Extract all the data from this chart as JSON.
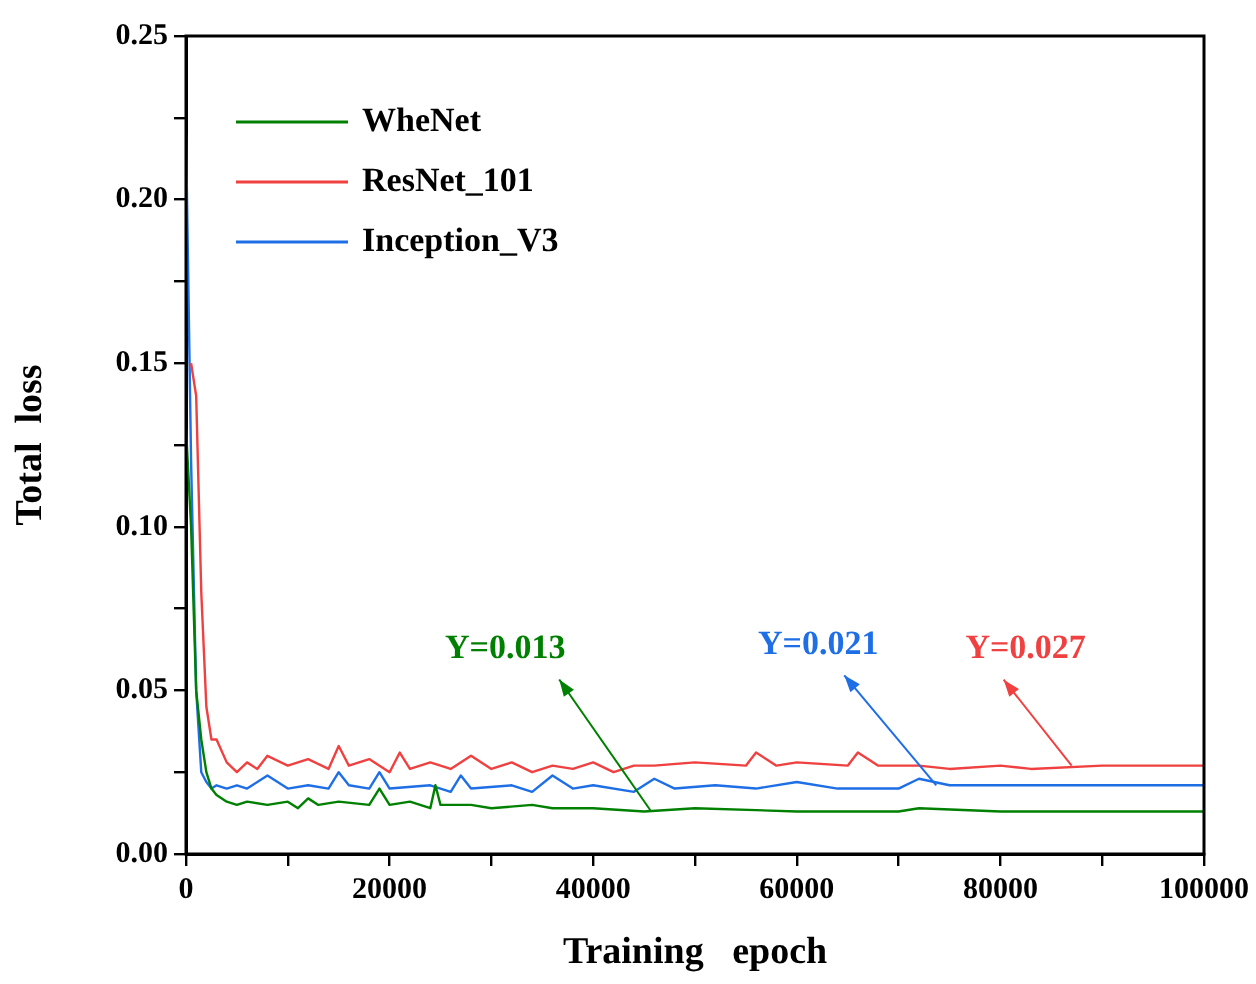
{
  "chart_data": {
    "type": "line",
    "xlabel": "Training   epoch",
    "ylabel": "Total  loss",
    "xlim": [
      0,
      100000
    ],
    "ylim": [
      0,
      0.25
    ],
    "xticks": [
      0,
      {
        "value": 10000,
        "label": null
      },
      20000,
      {
        "value": 30000,
        "label": null
      },
      40000,
      {
        "value": 50000,
        "label": null
      },
      60000,
      {
        "value": 70000,
        "label": null
      },
      80000,
      {
        "value": 90000,
        "label": null
      },
      100000
    ],
    "yticks": [
      {
        "value": 0,
        "label": "0.00"
      },
      {
        "value": 0.025,
        "label": null
      },
      {
        "value": 0.05,
        "label": "0.05"
      },
      {
        "value": 0.075,
        "label": null
      },
      {
        "value": 0.1,
        "label": "0.10"
      },
      {
        "value": 0.125,
        "label": null
      },
      {
        "value": 0.15,
        "label": "0.15"
      },
      {
        "value": 0.175,
        "label": null
      },
      {
        "value": 0.2,
        "label": "0.20"
      },
      {
        "value": 0.225,
        "label": null
      },
      {
        "value": 0.25,
        "label": "0.25"
      }
    ],
    "grid": false,
    "legend": "top left",
    "marker": "none",
    "line_style": "solid",
    "series": [
      {
        "name": "WheNet",
        "color": "#008000",
        "x": [
          0,
          500,
          1000,
          1500,
          2000,
          2500,
          3000,
          4000,
          5000,
          6000,
          8000,
          10000,
          11000,
          12000,
          13000,
          15000,
          18000,
          19000,
          20000,
          22000,
          24000,
          24500,
          25000,
          28000,
          30000,
          34000,
          36000,
          40000,
          45000,
          50000,
          60000,
          70000,
          72000,
          80000,
          90000,
          100000
        ],
        "values": [
          0.13,
          0.1,
          0.05,
          0.035,
          0.025,
          0.02,
          0.018,
          0.016,
          0.015,
          0.016,
          0.015,
          0.016,
          0.014,
          0.017,
          0.015,
          0.016,
          0.015,
          0.02,
          0.015,
          0.016,
          0.014,
          0.021,
          0.015,
          0.015,
          0.014,
          0.015,
          0.014,
          0.014,
          0.013,
          0.014,
          0.013,
          0.013,
          0.014,
          0.013,
          0.013,
          0.013
        ]
      },
      {
        "name": "ResNet_101",
        "color": "#f04040",
        "x": [
          500,
          1000,
          1500,
          2000,
          2500,
          3000,
          4000,
          5000,
          6000,
          7000,
          8000,
          10000,
          12000,
          14000,
          15000,
          16000,
          18000,
          20000,
          21000,
          22000,
          24000,
          26000,
          28000,
          30000,
          32000,
          34000,
          36000,
          38000,
          40000,
          42000,
          44000,
          46000,
          50000,
          55000,
          56000,
          58000,
          60000,
          65000,
          66000,
          68000,
          72000,
          75000,
          80000,
          83000,
          90000,
          100000
        ],
        "values": [
          0.15,
          0.14,
          0.08,
          0.045,
          0.035,
          0.035,
          0.028,
          0.025,
          0.028,
          0.026,
          0.03,
          0.027,
          0.029,
          0.026,
          0.033,
          0.027,
          0.029,
          0.025,
          0.031,
          0.026,
          0.028,
          0.026,
          0.03,
          0.026,
          0.028,
          0.025,
          0.027,
          0.026,
          0.028,
          0.025,
          0.027,
          0.027,
          0.028,
          0.027,
          0.031,
          0.027,
          0.028,
          0.027,
          0.031,
          0.027,
          0.027,
          0.026,
          0.027,
          0.026,
          0.027,
          0.027
        ]
      },
      {
        "name": "Inception_V3",
        "color": "#1e6ee6",
        "x": [
          0,
          500,
          1000,
          1500,
          2000,
          2500,
          3000,
          4000,
          5000,
          6000,
          8000,
          10000,
          12000,
          14000,
          15000,
          16000,
          18000,
          19000,
          20000,
          24000,
          26000,
          27000,
          28000,
          32000,
          34000,
          36000,
          38000,
          40000,
          44000,
          46000,
          48000,
          52000,
          56000,
          60000,
          64000,
          70000,
          72000,
          75000,
          80000,
          90000,
          100000
        ],
        "values": [
          0.22,
          0.12,
          0.05,
          0.025,
          0.022,
          0.02,
          0.021,
          0.02,
          0.021,
          0.02,
          0.024,
          0.02,
          0.021,
          0.02,
          0.025,
          0.021,
          0.02,
          0.025,
          0.02,
          0.021,
          0.019,
          0.024,
          0.02,
          0.021,
          0.019,
          0.024,
          0.02,
          0.021,
          0.019,
          0.023,
          0.02,
          0.021,
          0.02,
          0.022,
          0.02,
          0.02,
          0.023,
          0.021,
          0.021,
          0.021,
          0.021
        ]
      }
    ],
    "annotations": [
      {
        "text": "Y=0.013",
        "x": 45700,
        "y": 0.013
      },
      {
        "text": "Y=0.021",
        "x": 73700,
        "y": 0.021
      },
      {
        "text": "Y=0.027",
        "x": 87000,
        "y": 0.027
      }
    ]
  }
}
